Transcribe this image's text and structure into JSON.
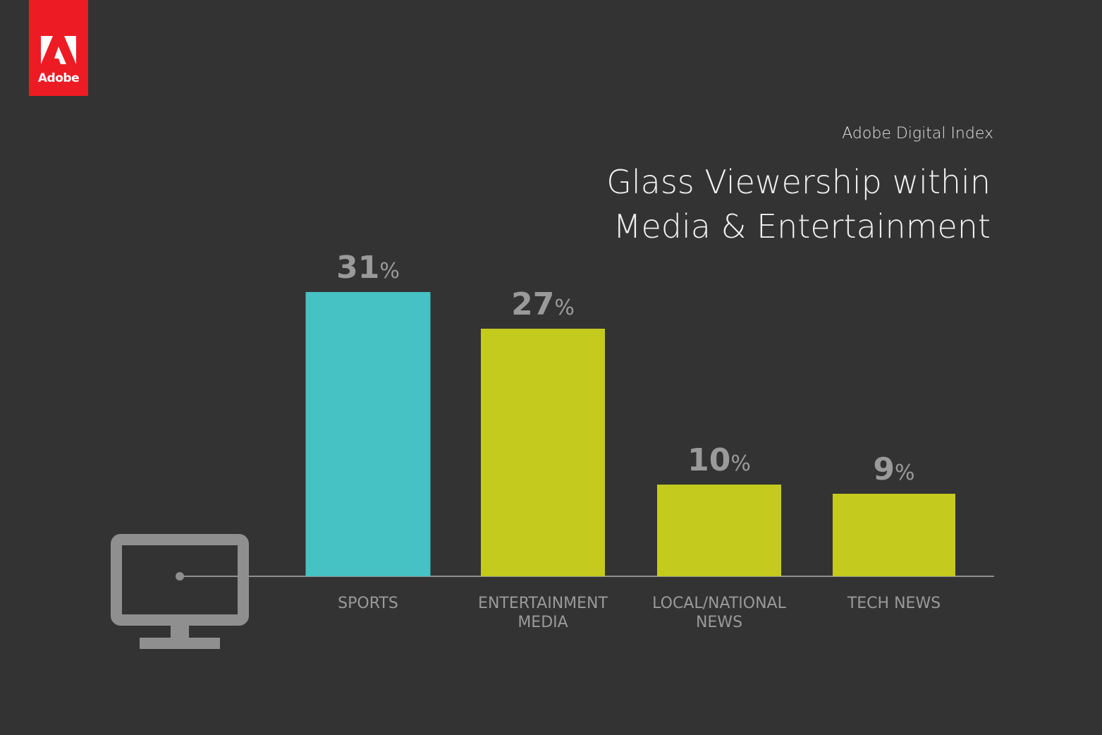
{
  "brand": {
    "name": "Adobe",
    "color": "#ED1C24",
    "icon": "adobe-logo-icon"
  },
  "header": {
    "source": "Adobe Digital Index",
    "title_line1": "Glass Viewership within",
    "title_line2": "Media & Entertainment"
  },
  "decoration": {
    "icon": "tv-monitor-icon"
  },
  "chart_data": {
    "type": "bar",
    "categories": [
      "SPORTS",
      "ENTERTAINMENT\nMEDIA",
      "LOCAL/NATIONAL\nNEWS",
      "TECH NEWS"
    ],
    "values": [
      31,
      27,
      10,
      9
    ],
    "value_suffix": "%",
    "colors": [
      "#46C1C4",
      "#C4CB1E",
      "#C4CB1E",
      "#C4CB1E"
    ],
    "title": "Glass Viewership within Media & Entertainment",
    "xlabel": "",
    "ylabel": "",
    "ylim": [
      0,
      31
    ],
    "grid": false,
    "legend": "none"
  }
}
